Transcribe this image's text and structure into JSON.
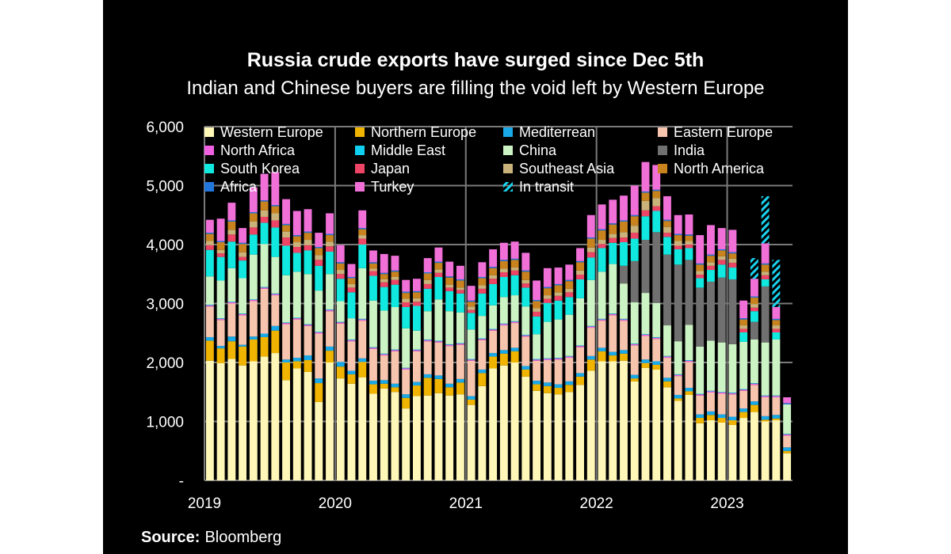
{
  "title": "Russia crude exports have surged since Dec 5th",
  "subtitle": "Indian and Chinese buyers are filling the void left by Western Europe",
  "source_label": "Source:",
  "source_value": "Bloomberg",
  "colors": {
    "background": "#000000",
    "text": "#ffffff",
    "grid": "#7a7a7a",
    "intransit": "#1ad3f0"
  },
  "chart_data": {
    "type": "bar",
    "stacked": true,
    "title": "Russia crude exports have surged since Dec 5th",
    "subtitle": "Indian and Chinese buyers are filling the void left by Western Europe",
    "ylim": [
      0,
      6000
    ],
    "yticks": [
      0,
      1000,
      2000,
      3000,
      4000,
      5000,
      6000
    ],
    "ytick_labels": [
      "-",
      "1,000",
      "2,000",
      "3,000",
      "4,000",
      "5,000",
      "6,000"
    ],
    "xtick_labels": [
      "2019",
      "2020",
      "2021",
      "2022",
      "2023"
    ],
    "xtick_positions": [
      0,
      12,
      24,
      36,
      48
    ],
    "grid": true,
    "legend_position": "top",
    "series": [
      {
        "name": "Western Europe",
        "color": "#fff7b8",
        "values": [
          2030,
          1990,
          2060,
          1950,
          2020,
          2100,
          2160,
          1700,
          1900,
          1840,
          1330,
          2000,
          1730,
          1640,
          1750,
          1470,
          1560,
          1500,
          1220,
          1430,
          1440,
          1480,
          1440,
          1460,
          1280,
          1600,
          1900,
          1950,
          2000,
          1760,
          1520,
          1480,
          1460,
          1500,
          1620,
          1860,
          2020,
          2020,
          2030,
          1680,
          1910,
          1880,
          1580,
          1350,
          1450,
          970,
          1020,
          980,
          940,
          1060,
          1160,
          1000,
          1020,
          460
        ]
      },
      {
        "name": "Northern Europe",
        "color": "#f0b400",
        "values": [
          340,
          250,
          300,
          320,
          370,
          330,
          380,
          300,
          120,
          200,
          320,
          200,
          200,
          160,
          260,
          160,
          80,
          80,
          180,
          180,
          300,
          240,
          140,
          200,
          90,
          220,
          200,
          200,
          190,
          120,
          110,
          120,
          110,
          120,
          140,
          190,
          170,
          100,
          120,
          50,
          80,
          80,
          100,
          40,
          60,
          90,
          90,
          80,
          80,
          100,
          120,
          30,
          30,
          40
        ]
      },
      {
        "name": "Mediterrean",
        "color": "#1aa9e8",
        "values": [
          60,
          40,
          80,
          30,
          50,
          60,
          80,
          50,
          60,
          80,
          80,
          70,
          80,
          60,
          60,
          60,
          60,
          60,
          60,
          60,
          60,
          60,
          60,
          60,
          60,
          60,
          60,
          60,
          60,
          60,
          60,
          60,
          60,
          60,
          60,
          60,
          60,
          60,
          60,
          60,
          60,
          60,
          60,
          60,
          60,
          60,
          60,
          60,
          60,
          60,
          60,
          60,
          60,
          60
        ]
      },
      {
        "name": "Eastern Europe",
        "color": "#f7c4ad",
        "values": [
          520,
          440,
          560,
          500,
          600,
          760,
          520,
          600,
          650,
          500,
          760,
          600,
          650,
          500,
          640,
          540,
          420,
          550,
          420,
          520,
          560,
          560,
          640,
          580,
          600,
          500,
          380,
          420,
          420,
          500,
          340,
          380,
          420,
          400,
          440,
          480,
          460,
          620,
          500,
          500,
          400,
          380,
          340,
          320,
          440,
          320,
          320,
          350,
          380,
          300,
          280,
          320,
          300,
          200
        ]
      },
      {
        "name": "North Africa",
        "color": "#f060e0",
        "values": [
          20,
          20,
          20,
          20,
          20,
          20,
          20,
          20,
          20,
          20,
          20,
          20,
          20,
          20,
          20,
          20,
          20,
          20,
          20,
          20,
          20,
          20,
          20,
          20,
          20,
          20,
          20,
          20,
          20,
          20,
          20,
          20,
          20,
          20,
          20,
          20,
          20,
          20,
          20,
          20,
          20,
          20,
          20,
          20,
          20,
          20,
          20,
          20,
          20,
          20,
          20,
          20,
          20,
          20
        ]
      },
      {
        "name": "Middle East",
        "color": "#0fd0f0",
        "values": [
          10,
          10,
          10,
          10,
          10,
          10,
          10,
          10,
          10,
          10,
          10,
          10,
          10,
          10,
          10,
          10,
          10,
          10,
          10,
          10,
          10,
          10,
          10,
          10,
          10,
          10,
          10,
          10,
          10,
          10,
          10,
          10,
          10,
          10,
          10,
          10,
          10,
          10,
          10,
          10,
          10,
          10,
          10,
          10,
          10,
          10,
          10,
          10,
          10,
          10,
          10,
          10,
          10,
          10
        ]
      },
      {
        "name": "China",
        "color": "#ccf3c4",
        "values": [
          480,
          640,
          570,
          600,
          760,
          730,
          620,
          800,
          780,
          850,
          700,
          600,
          350,
          360,
          860,
          790,
          730,
          720,
          670,
          320,
          480,
          700,
          560,
          520,
          500,
          380,
          400,
          450,
          440,
          480,
          420,
          620,
          650,
          700,
          800,
          780,
          800,
          840,
          600,
          700,
          700,
          580,
          520,
          560,
          600,
          800,
          850,
          840,
          820,
          800,
          740,
          900,
          950,
          500
        ]
      },
      {
        "name": "India",
        "color": "#707070",
        "values": [
          0,
          0,
          0,
          0,
          0,
          0,
          0,
          0,
          0,
          0,
          0,
          0,
          0,
          0,
          0,
          0,
          0,
          0,
          0,
          0,
          0,
          0,
          0,
          0,
          0,
          0,
          0,
          0,
          0,
          0,
          0,
          0,
          0,
          0,
          0,
          0,
          0,
          0,
          300,
          700,
          900,
          1200,
          1200,
          1300,
          1100,
          1000,
          1000,
          1100,
          1100,
          0,
          300,
          950,
          0,
          0
        ]
      },
      {
        "name": "South Korea",
        "color": "#10e8e0",
        "values": [
          450,
          400,
          450,
          300,
          340,
          360,
          500,
          500,
          320,
          400,
          420,
          380,
          380,
          440,
          400,
          420,
          400,
          380,
          360,
          420,
          380,
          380,
          340,
          320,
          280,
          380,
          360,
          340,
          340,
          320,
          300,
          320,
          320,
          300,
          320,
          380,
          400,
          360,
          400,
          380,
          400,
          360,
          300,
          260,
          200,
          160,
          200,
          220,
          200,
          160,
          180,
          120,
          120,
          0
        ]
      },
      {
        "name": "Japan",
        "color": "#ee4466",
        "values": [
          80,
          60,
          120,
          60,
          120,
          100,
          120,
          140,
          100,
          90,
          100,
          90,
          80,
          80,
          100,
          80,
          80,
          80,
          80,
          70,
          80,
          70,
          60,
          60,
          50,
          80,
          90,
          80,
          80,
          70,
          80,
          70,
          80,
          80,
          80,
          90,
          70,
          80,
          80,
          100,
          100,
          80,
          70,
          60,
          60,
          60,
          70,
          80,
          80,
          60,
          60,
          70,
          60,
          0
        ]
      },
      {
        "name": "Southeast Asia",
        "color": "#c9b37a",
        "values": [
          70,
          60,
          80,
          80,
          100,
          110,
          120,
          100,
          80,
          90,
          80,
          80,
          70,
          60,
          60,
          40,
          50,
          50,
          60,
          60,
          70,
          60,
          50,
          40,
          60,
          60,
          60,
          60,
          50,
          60,
          60,
          60,
          60,
          60,
          70,
          80,
          70,
          70,
          90,
          120,
          160,
          140,
          100,
          80,
          60,
          60,
          60,
          60,
          70,
          60,
          60,
          60,
          60,
          0
        ]
      },
      {
        "name": "North America",
        "color": "#c8821e",
        "values": [
          120,
          130,
          140,
          140,
          140,
          150,
          120,
          110,
          100,
          120,
          120,
          110,
          110,
          100,
          100,
          90,
          90,
          90,
          100,
          100,
          110,
          110,
          120,
          120,
          80,
          120,
          120,
          130,
          130,
          140,
          120,
          120,
          120,
          130,
          140,
          150,
          160,
          160,
          180,
          160,
          140,
          120,
          100,
          100,
          90,
          110,
          110,
          100,
          90,
          100,
          110,
          120,
          90,
          0
        ]
      },
      {
        "name": "Africa",
        "color": "#2277dd",
        "values": [
          20,
          20,
          20,
          20,
          20,
          20,
          20,
          20,
          20,
          20,
          20,
          20,
          20,
          20,
          20,
          20,
          20,
          20,
          20,
          20,
          20,
          20,
          20,
          20,
          20,
          20,
          20,
          20,
          20,
          20,
          20,
          20,
          20,
          20,
          20,
          20,
          20,
          20,
          20,
          20,
          20,
          20,
          20,
          20,
          20,
          20,
          20,
          20,
          20,
          20,
          20,
          20,
          20,
          20
        ]
      },
      {
        "name": "Turkey",
        "color": "#f070d8",
        "values": [
          220,
          380,
          300,
          250,
          420,
          450,
          560,
          420,
          410,
          380,
          240,
          350,
          290,
          220,
          300,
          200,
          320,
          250,
          200,
          210,
          240,
          240,
          250,
          230,
          250,
          250,
          300,
          290,
          290,
          300,
          330,
          320,
          280,
          260,
          220,
          380,
          420,
          400,
          420,
          500,
          500,
          420,
          400,
          320,
          340,
          480,
          500,
          360,
          380,
          300,
          300,
          340,
          200,
          100
        ]
      },
      {
        "name": "In transit",
        "color": "#1ad3f0",
        "pattern": "hatched",
        "values": [
          0,
          0,
          0,
          0,
          0,
          0,
          0,
          0,
          0,
          0,
          0,
          0,
          0,
          0,
          0,
          0,
          0,
          0,
          0,
          0,
          0,
          0,
          0,
          0,
          0,
          0,
          0,
          0,
          0,
          0,
          0,
          0,
          0,
          0,
          0,
          0,
          0,
          0,
          0,
          0,
          0,
          0,
          0,
          0,
          0,
          0,
          0,
          0,
          0,
          0,
          350,
          800,
          800,
          0
        ]
      }
    ]
  }
}
